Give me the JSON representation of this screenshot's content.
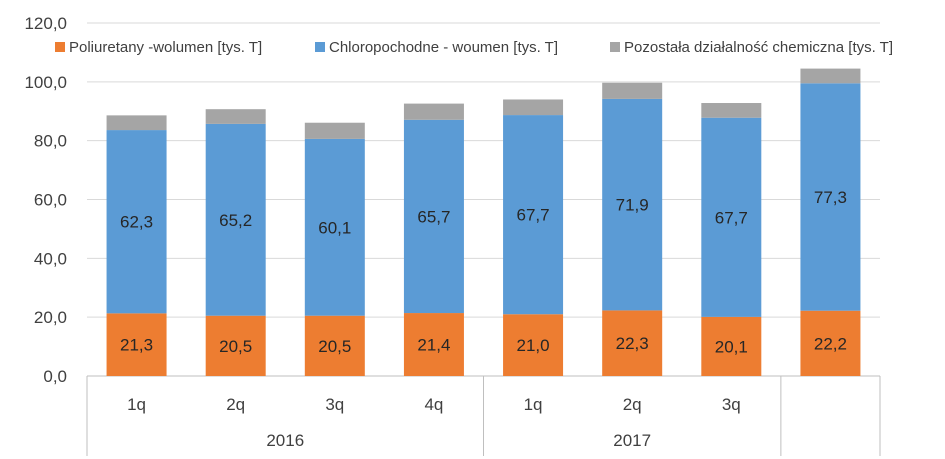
{
  "colors": {
    "series": [
      "#ED7D31",
      "#5B9BD5",
      "#A5A5A5"
    ],
    "grid": "#D9D9D9",
    "axis": "#BFBFBF"
  },
  "chart_data": {
    "type": "bar",
    "stacked": true,
    "title": "",
    "xlabel": "",
    "ylabel": "",
    "ylim": [
      0,
      120
    ],
    "yticks": [
      "0,0",
      "20,0",
      "40,0",
      "60,0",
      "80,0",
      "100,0",
      "120,0"
    ],
    "categories": [
      "1q",
      "2q",
      "3q",
      "4q",
      "1q",
      "2q",
      "3q",
      ""
    ],
    "groups": [
      {
        "label": "2016",
        "start": 0,
        "count": 4
      },
      {
        "label": "2017",
        "start": 4,
        "count": 3
      },
      {
        "label": "",
        "start": 7,
        "count": 1
      }
    ],
    "legend_position": "top",
    "grid": true,
    "series": [
      {
        "name": "Poliuretany -wolumen [tys. T]",
        "values": [
          21.3,
          20.5,
          20.5,
          21.4,
          21.0,
          22.3,
          20.1,
          22.2
        ],
        "labels": [
          "21,3",
          "20,5",
          "20,5",
          "21,4",
          "21,0",
          "22,3",
          "20,1",
          "22,2"
        ]
      },
      {
        "name": "Chloropochodne - woumen [tys. T]",
        "values": [
          62.3,
          65.2,
          60.1,
          65.7,
          67.7,
          71.9,
          67.7,
          77.3
        ],
        "labels": [
          "62,3",
          "65,2",
          "60,1",
          "65,7",
          "67,7",
          "71,9",
          "67,7",
          "77,3"
        ]
      },
      {
        "name": "Pozostała działalność chemiczna [tys. T]",
        "values": [
          5.0,
          5.0,
          5.5,
          5.5,
          5.3,
          5.5,
          5.0,
          5.0
        ]
      }
    ]
  }
}
